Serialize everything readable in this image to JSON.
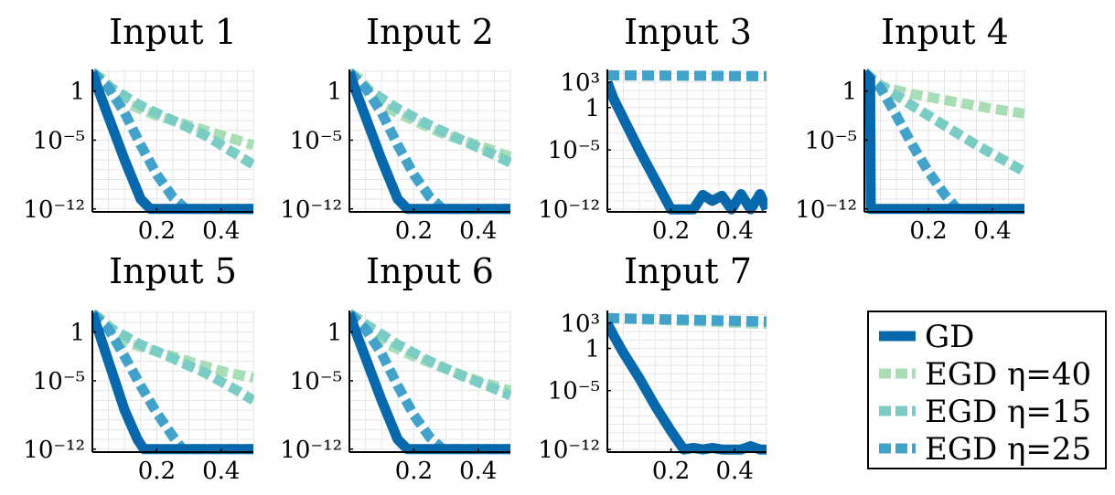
{
  "colors": {
    "gd": "#0868ac",
    "egd_40": "#a8ddb5",
    "egd_15": "#7bccc4",
    "egd_25": "#43a2ca",
    "grid": "#e6e6e6",
    "axis": "#000000"
  },
  "legend": {
    "placement": "bottom-right",
    "entries": [
      {
        "key": "gd",
        "label": "GD",
        "style": "solid"
      },
      {
        "key": "egd_40",
        "label": "EGD η=40",
        "style": "dashed"
      },
      {
        "key": "egd_15",
        "label": "EGD η=15",
        "style": "dashed"
      },
      {
        "key": "egd_25",
        "label": "EGD η=25",
        "style": "dashed"
      }
    ]
  },
  "chart_data": [
    {
      "type": "line",
      "title": "Input 1",
      "xlabel": "",
      "ylabel": "",
      "yscale": "log",
      "xlim": [
        0,
        0.5
      ],
      "ylim_exp": [
        -12.3,
        2.2
      ],
      "x_ticks": [
        "0.2",
        "0.4"
      ],
      "x_tick_values": [
        0.2,
        0.4
      ],
      "y_ticks": [
        {
          "label": "1",
          "exp": 0
        },
        {
          "label": "10⁻⁵",
          "exp": -5
        },
        {
          "label": "10⁻¹²",
          "exp": -12
        }
      ],
      "grid": true,
      "series": [
        {
          "key": "gd",
          "log10_points": [
            [
              0,
              1.9
            ],
            [
              0.02,
              0
            ],
            [
              0.06,
              -3.5
            ],
            [
              0.1,
              -7
            ],
            [
              0.15,
              -11
            ],
            [
              0.18,
              -12
            ],
            [
              0.5,
              -12
            ]
          ]
        },
        {
          "key": "egd_40",
          "log10_points": [
            [
              0,
              1.9
            ],
            [
              0.03,
              1.3
            ],
            [
              0.1,
              -1.2
            ],
            [
              0.2,
              -2.5
            ],
            [
              0.3,
              -3.5
            ],
            [
              0.4,
              -4.5
            ],
            [
              0.5,
              -5.5
            ]
          ]
        },
        {
          "key": "egd_15",
          "log10_points": [
            [
              0,
              1.9
            ],
            [
              0.05,
              0.5
            ],
            [
              0.15,
              -1.5
            ],
            [
              0.25,
              -3
            ],
            [
              0.35,
              -4.5
            ],
            [
              0.45,
              -6.5
            ],
            [
              0.5,
              -7.5
            ]
          ]
        },
        {
          "key": "egd_25",
          "log10_points": [
            [
              0,
              1.9
            ],
            [
              0.05,
              0.3
            ],
            [
              0.1,
              -2.2
            ],
            [
              0.15,
              -5.5
            ],
            [
              0.2,
              -8.5
            ],
            [
              0.25,
              -10.8
            ],
            [
              0.29,
              -12
            ],
            [
              0.5,
              -12
            ]
          ]
        }
      ]
    },
    {
      "type": "line",
      "title": "Input 2",
      "xlabel": "",
      "ylabel": "",
      "yscale": "log",
      "xlim": [
        0,
        0.5
      ],
      "ylim_exp": [
        -12.3,
        2.2
      ],
      "x_ticks": [
        "0.2",
        "0.4"
      ],
      "x_tick_values": [
        0.2,
        0.4
      ],
      "y_ticks": [
        {
          "label": "1",
          "exp": 0
        },
        {
          "label": "10⁻⁵",
          "exp": -5
        },
        {
          "label": "10⁻¹²",
          "exp": -12
        }
      ],
      "grid": true,
      "series": [
        {
          "key": "gd",
          "log10_points": [
            [
              0,
              1.9
            ],
            [
              0.02,
              0
            ],
            [
              0.06,
              -3.5
            ],
            [
              0.1,
              -7
            ],
            [
              0.15,
              -11
            ],
            [
              0.18,
              -12
            ],
            [
              0.5,
              -12
            ]
          ]
        },
        {
          "key": "egd_40",
          "log10_points": [
            [
              0,
              1.9
            ],
            [
              0.03,
              1.3
            ],
            [
              0.1,
              -1.5
            ],
            [
              0.2,
              -3
            ],
            [
              0.3,
              -4.5
            ],
            [
              0.4,
              -5.5
            ],
            [
              0.5,
              -6.7
            ]
          ]
        },
        {
          "key": "egd_15",
          "log10_points": [
            [
              0,
              1.9
            ],
            [
              0.05,
              0.3
            ],
            [
              0.15,
              -1.8
            ],
            [
              0.25,
              -3.5
            ],
            [
              0.35,
              -5
            ],
            [
              0.45,
              -6.5
            ],
            [
              0.5,
              -7.3
            ]
          ]
        },
        {
          "key": "egd_25",
          "log10_points": [
            [
              0,
              1.9
            ],
            [
              0.05,
              0.3
            ],
            [
              0.1,
              -2.2
            ],
            [
              0.15,
              -5.5
            ],
            [
              0.2,
              -8.5
            ],
            [
              0.25,
              -10.8
            ],
            [
              0.29,
              -12
            ],
            [
              0.5,
              -12
            ]
          ]
        }
      ]
    },
    {
      "type": "line",
      "title": "Input 3",
      "xlabel": "",
      "ylabel": "",
      "yscale": "log",
      "xlim": [
        0,
        0.5
      ],
      "ylim_exp": [
        -12.3,
        4.5
      ],
      "x_ticks": [
        "0.2",
        "0.4"
      ],
      "x_tick_values": [
        0.2,
        0.4
      ],
      "y_ticks": [
        {
          "label": "10³",
          "exp": 3
        },
        {
          "label": "1",
          "exp": 0
        },
        {
          "label": "10⁻⁵",
          "exp": -5
        },
        {
          "label": "10⁻¹²",
          "exp": -12
        }
      ],
      "grid": true,
      "series": [
        {
          "key": "gd",
          "log10_points": [
            [
              0,
              3
            ],
            [
              0.02,
              1
            ],
            [
              0.06,
              -2
            ],
            [
              0.1,
              -5
            ],
            [
              0.15,
              -8.5
            ],
            [
              0.2,
              -12
            ],
            [
              0.27,
              -12
            ],
            [
              0.3,
              -10.3
            ],
            [
              0.33,
              -11
            ],
            [
              0.36,
              -10.4
            ],
            [
              0.39,
              -12
            ],
            [
              0.42,
              -10.2
            ],
            [
              0.45,
              -12
            ],
            [
              0.48,
              -10.2
            ],
            [
              0.5,
              -12
            ]
          ]
        },
        {
          "key": "egd_40",
          "log10_points": [
            [
              0,
              3.8
            ],
            [
              0.5,
              3.7
            ]
          ]
        },
        {
          "key": "egd_15",
          "log10_points": [
            [
              0,
              3.8
            ],
            [
              0.5,
              3.7
            ]
          ]
        },
        {
          "key": "egd_25",
          "log10_points": [
            [
              0,
              3.8
            ],
            [
              0.5,
              3.7
            ]
          ]
        }
      ]
    },
    {
      "type": "line",
      "title": "Input 4",
      "xlabel": "",
      "ylabel": "",
      "yscale": "log",
      "xlim": [
        0,
        0.5
      ],
      "ylim_exp": [
        -12.3,
        2.2
      ],
      "x_ticks": [
        "0.2",
        "0.4"
      ],
      "x_tick_values": [
        0.2,
        0.4
      ],
      "y_ticks": [
        {
          "label": "1",
          "exp": 0
        },
        {
          "label": "10⁻⁵",
          "exp": -5
        },
        {
          "label": "10⁻¹²",
          "exp": -12
        }
      ],
      "grid": true,
      "series": [
        {
          "key": "gd",
          "log10_points": [
            [
              0,
              1.9
            ],
            [
              0.018,
              1.2
            ],
            [
              0.02,
              -12
            ],
            [
              0.5,
              -12
            ]
          ]
        },
        {
          "key": "egd_40",
          "log10_points": [
            [
              0,
              1.9
            ],
            [
              0.05,
              0.5
            ],
            [
              0.15,
              -0.3
            ],
            [
              0.3,
              -1.2
            ],
            [
              0.4,
              -1.8
            ],
            [
              0.5,
              -2.3
            ]
          ]
        },
        {
          "key": "egd_15",
          "log10_points": [
            [
              0,
              1.9
            ],
            [
              0.05,
              0.6
            ],
            [
              0.15,
              -1.5
            ],
            [
              0.25,
              -3.5
            ],
            [
              0.35,
              -5.5
            ],
            [
              0.45,
              -7.3
            ],
            [
              0.5,
              -8.2
            ]
          ]
        },
        {
          "key": "egd_25",
          "log10_points": [
            [
              0,
              1.9
            ],
            [
              0.05,
              0.3
            ],
            [
              0.1,
              -2.5
            ],
            [
              0.15,
              -5.5
            ],
            [
              0.2,
              -8.2
            ],
            [
              0.25,
              -10.5
            ],
            [
              0.29,
              -12
            ],
            [
              0.5,
              -12
            ]
          ]
        }
      ]
    },
    {
      "type": "line",
      "title": "Input 5",
      "xlabel": "",
      "ylabel": "",
      "yscale": "log",
      "xlim": [
        0,
        0.5
      ],
      "ylim_exp": [
        -12.3,
        2.2
      ],
      "x_ticks": [
        "0.2",
        "0.4"
      ],
      "x_tick_values": [
        0.2,
        0.4
      ],
      "y_ticks": [
        {
          "label": "1",
          "exp": 0
        },
        {
          "label": "10⁻⁵",
          "exp": -5
        },
        {
          "label": "10⁻¹²",
          "exp": -12
        }
      ],
      "grid": true,
      "series": [
        {
          "key": "gd",
          "log10_points": [
            [
              0,
              1.9
            ],
            [
              0.02,
              0
            ],
            [
              0.06,
              -4
            ],
            [
              0.1,
              -8
            ],
            [
              0.14,
              -11
            ],
            [
              0.16,
              -12
            ],
            [
              0.5,
              -12
            ]
          ]
        },
        {
          "key": "egd_40",
          "log10_points": [
            [
              0,
              1.9
            ],
            [
              0.03,
              1.3
            ],
            [
              0.1,
              -1
            ],
            [
              0.2,
              -2
            ],
            [
              0.3,
              -3
            ],
            [
              0.4,
              -4
            ],
            [
              0.5,
              -4.7
            ]
          ]
        },
        {
          "key": "egd_15",
          "log10_points": [
            [
              0,
              1.9
            ],
            [
              0.05,
              0.5
            ],
            [
              0.15,
              -1.3
            ],
            [
              0.25,
              -2.7
            ],
            [
              0.35,
              -4.2
            ],
            [
              0.45,
              -6
            ],
            [
              0.5,
              -7
            ]
          ]
        },
        {
          "key": "egd_25",
          "log10_points": [
            [
              0,
              1.9
            ],
            [
              0.05,
              0.3
            ],
            [
              0.1,
              -2.5
            ],
            [
              0.15,
              -5.5
            ],
            [
              0.2,
              -8.3
            ],
            [
              0.25,
              -10.7
            ],
            [
              0.28,
              -12
            ],
            [
              0.5,
              -12
            ]
          ]
        }
      ]
    },
    {
      "type": "line",
      "title": "Input 6",
      "xlabel": "",
      "ylabel": "",
      "yscale": "log",
      "xlim": [
        0,
        0.5
      ],
      "ylim_exp": [
        -12.3,
        2.2
      ],
      "x_ticks": [
        "0.2",
        "0.4"
      ],
      "x_tick_values": [
        0.2,
        0.4
      ],
      "y_ticks": [
        {
          "label": "1",
          "exp": 0
        },
        {
          "label": "10⁻⁵",
          "exp": -5
        },
        {
          "label": "10⁻¹²",
          "exp": -12
        }
      ],
      "grid": true,
      "series": [
        {
          "key": "gd",
          "log10_points": [
            [
              0,
              1.9
            ],
            [
              0.02,
              0
            ],
            [
              0.06,
              -3.5
            ],
            [
              0.1,
              -7
            ],
            [
              0.15,
              -11
            ],
            [
              0.18,
              -12
            ],
            [
              0.5,
              -12
            ]
          ]
        },
        {
          "key": "egd_40",
          "log10_points": [
            [
              0,
              1.9
            ],
            [
              0.03,
              1.3
            ],
            [
              0.1,
              -1
            ],
            [
              0.2,
              -2.5
            ],
            [
              0.3,
              -3.8
            ],
            [
              0.4,
              -5
            ],
            [
              0.5,
              -6
            ]
          ]
        },
        {
          "key": "egd_15",
          "log10_points": [
            [
              0,
              1.9
            ],
            [
              0.05,
              0.8
            ],
            [
              0.15,
              -1.3
            ],
            [
              0.25,
              -3
            ],
            [
              0.35,
              -4.5
            ],
            [
              0.45,
              -5.8
            ],
            [
              0.5,
              -6.5
            ]
          ]
        },
        {
          "key": "egd_25",
          "log10_points": [
            [
              0,
              1.9
            ],
            [
              0.05,
              0.3
            ],
            [
              0.1,
              -2.2
            ],
            [
              0.15,
              -5.5
            ],
            [
              0.2,
              -8.5
            ],
            [
              0.25,
              -10.8
            ],
            [
              0.29,
              -12
            ],
            [
              0.5,
              -12
            ]
          ]
        }
      ]
    },
    {
      "type": "line",
      "title": "Input 7",
      "xlabel": "",
      "ylabel": "",
      "yscale": "log",
      "xlim": [
        0,
        0.5
      ],
      "ylim_exp": [
        -12.3,
        4.5
      ],
      "x_ticks": [
        "0.2",
        "0.4"
      ],
      "x_tick_values": [
        0.2,
        0.4
      ],
      "y_ticks": [
        {
          "label": "10³",
          "exp": 3
        },
        {
          "label": "1",
          "exp": 0
        },
        {
          "label": "10⁻⁵",
          "exp": -5
        },
        {
          "label": "10⁻¹²",
          "exp": -12
        }
      ],
      "grid": true,
      "series": [
        {
          "key": "gd",
          "log10_points": [
            [
              0,
              3
            ],
            [
              0.02,
              1.5
            ],
            [
              0.05,
              -0.5
            ],
            [
              0.1,
              -3.5
            ],
            [
              0.15,
              -6.8
            ],
            [
              0.2,
              -9.8
            ],
            [
              0.24,
              -12
            ],
            [
              0.27,
              -11.8
            ],
            [
              0.3,
              -12
            ],
            [
              0.33,
              -11.8
            ],
            [
              0.36,
              -12
            ],
            [
              0.42,
              -12
            ],
            [
              0.45,
              -11.6
            ],
            [
              0.48,
              -12
            ],
            [
              0.5,
              -12
            ]
          ]
        },
        {
          "key": "egd_40",
          "log10_points": [
            [
              0,
              3.6
            ],
            [
              0.5,
              2.9
            ]
          ]
        },
        {
          "key": "egd_15",
          "log10_points": [
            [
              0,
              3.6
            ],
            [
              0.5,
              3.1
            ]
          ]
        },
        {
          "key": "egd_25",
          "log10_points": [
            [
              0,
              3.6
            ],
            [
              0.5,
              3.2
            ]
          ]
        }
      ]
    }
  ]
}
